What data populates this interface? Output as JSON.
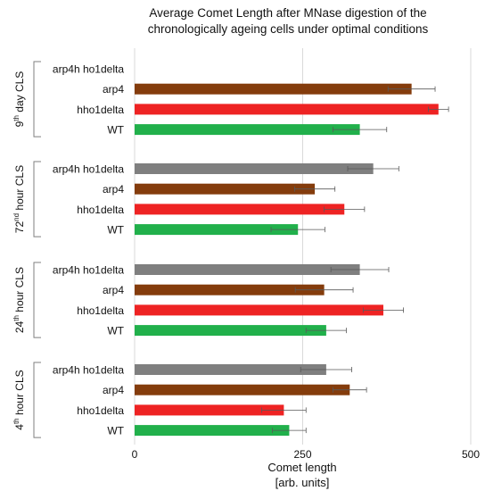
{
  "chart_data": {
    "type": "bar",
    "orientation": "horizontal",
    "title_lines": [
      "Average Comet Length after MNase digestion of the",
      "chronologically ageing cells under optimal conditions"
    ],
    "xlabel_lines": [
      "Comet length",
      "[arb. units]"
    ],
    "xlim": [
      0,
      500
    ],
    "xticks": [
      "0",
      "250",
      "500"
    ],
    "grid": true,
    "bar_colors": {
      "arp4h ho1delta": "#7f7f7f",
      "arp4": "#843c0c",
      "hho1delta": "#ee2323",
      "WT": "#21b04b"
    },
    "groups": [
      {
        "label_parts": [
          "9",
          "th",
          " day CLS"
        ],
        "bars": [
          {
            "label": "arp4h ho1delta",
            "value": 0,
            "error": 0
          },
          {
            "label": "arp4",
            "value": 412,
            "error": 35
          },
          {
            "label": "hho1delta",
            "value": 452,
            "error": 15
          },
          {
            "label": "WT",
            "value": 335,
            "error": 40
          }
        ]
      },
      {
        "label_parts": [
          "72",
          "nd",
          " hour CLS"
        ],
        "bars": [
          {
            "label": "arp4h ho1delta",
            "value": 355,
            "error": 38
          },
          {
            "label": "arp4",
            "value": 268,
            "error": 30
          },
          {
            "label": "hho1delta",
            "value": 312,
            "error": 30
          },
          {
            "label": "WT",
            "value": 243,
            "error": 40
          }
        ]
      },
      {
        "label_parts": [
          "24",
          "th",
          " hour CLS"
        ],
        "bars": [
          {
            "label": "arp4h ho1delta",
            "value": 335,
            "error": 43
          },
          {
            "label": "arp4",
            "value": 282,
            "error": 43
          },
          {
            "label": "hho1delta",
            "value": 370,
            "error": 30
          },
          {
            "label": "WT",
            "value": 285,
            "error": 30
          }
        ]
      },
      {
        "label_parts": [
          "4",
          "th",
          " hour CLS"
        ],
        "bars": [
          {
            "label": "arp4h ho1delta",
            "value": 285,
            "error": 38
          },
          {
            "label": "arp4",
            "value": 320,
            "error": 25
          },
          {
            "label": "hho1delta",
            "value": 222,
            "error": 33
          },
          {
            "label": "WT",
            "value": 230,
            "error": 25
          }
        ]
      }
    ]
  }
}
